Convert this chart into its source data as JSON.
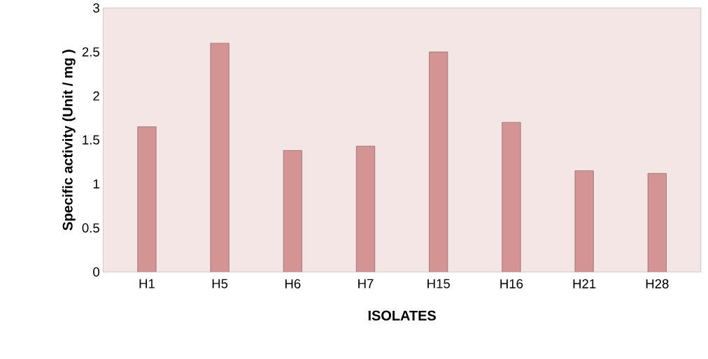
{
  "chart_data": {
    "type": "bar",
    "xlabel": "ISOLATES",
    "ylabel": "Specific activity (Unit / mg )",
    "categories": [
      "H1",
      "H5",
      "H6",
      "H7",
      "H15",
      "H16",
      "H21",
      "H28"
    ],
    "values": [
      1.65,
      2.6,
      1.38,
      1.43,
      2.5,
      1.7,
      1.15,
      1.12
    ],
    "color": "#d49494",
    "ylim": [
      0,
      3
    ],
    "yticks": [
      0,
      0.5,
      1,
      1.5,
      2,
      2.5,
      3
    ],
    "grid": false
  }
}
